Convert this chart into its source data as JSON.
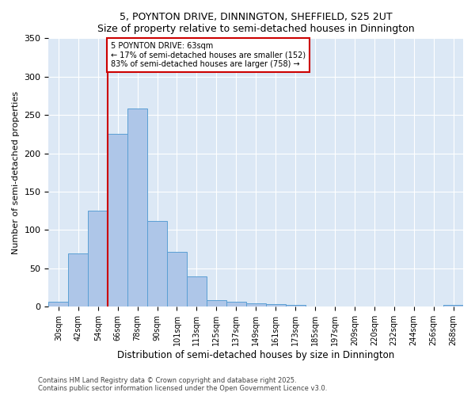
{
  "title": "5, POYNTON DRIVE, DINNINGTON, SHEFFIELD, S25 2UT",
  "subtitle": "Size of property relative to semi-detached houses in Dinnington",
  "xlabel": "Distribution of semi-detached houses by size in Dinnington",
  "ylabel": "Number of semi-detached properties",
  "categories": [
    "30sqm",
    "42sqm",
    "54sqm",
    "66sqm",
    "78sqm",
    "90sqm",
    "101sqm",
    "113sqm",
    "125sqm",
    "137sqm",
    "149sqm",
    "161sqm",
    "173sqm",
    "185sqm",
    "197sqm",
    "209sqm",
    "220sqm",
    "232sqm",
    "244sqm",
    "256sqm",
    "268sqm"
  ],
  "values": [
    7,
    70,
    125,
    225,
    258,
    112,
    72,
    40,
    9,
    7,
    5,
    3,
    2,
    0,
    0,
    0,
    0,
    0,
    0,
    0,
    2
  ],
  "bar_color": "#aec6e8",
  "bar_edge_color": "#5a9fd4",
  "vline_color": "#cc0000",
  "vline_x_index": 3,
  "annotation_title": "5 POYNTON DRIVE: 63sqm",
  "annotation_line2": "← 17% of semi-detached houses are smaller (152)",
  "annotation_line3": "83% of semi-detached houses are larger (758) →",
  "annotation_box_color": "#cc0000",
  "ylim": [
    0,
    350
  ],
  "yticks": [
    0,
    50,
    100,
    150,
    200,
    250,
    300,
    350
  ],
  "bg_color": "#dce8f5",
  "footnote1": "Contains HM Land Registry data © Crown copyright and database right 2025.",
  "footnote2": "Contains public sector information licensed under the Open Government Licence v3.0."
}
